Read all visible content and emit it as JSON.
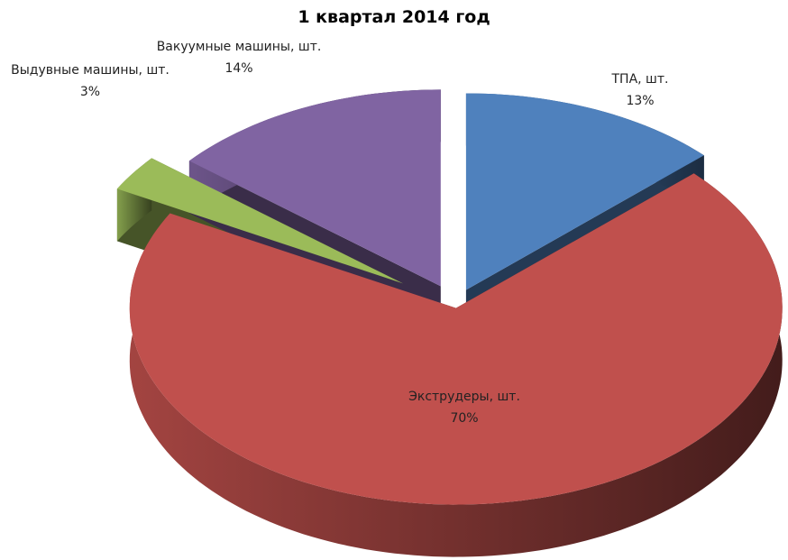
{
  "chart_data": {
    "type": "pie",
    "title": "1 квартал  2014 год",
    "categories": [
      "ТПА, шт.",
      "Экструдеры,  шт.",
      "Выдувные машины, шт.",
      "Вакуумные машины, шт."
    ],
    "values": [
      13,
      70,
      3,
      14
    ],
    "value_labels": [
      "13%",
      "70%",
      "3%",
      "14%"
    ],
    "colors": [
      "#4f81bd",
      "#c0504d",
      "#9bbb59",
      "#8064a2"
    ]
  }
}
